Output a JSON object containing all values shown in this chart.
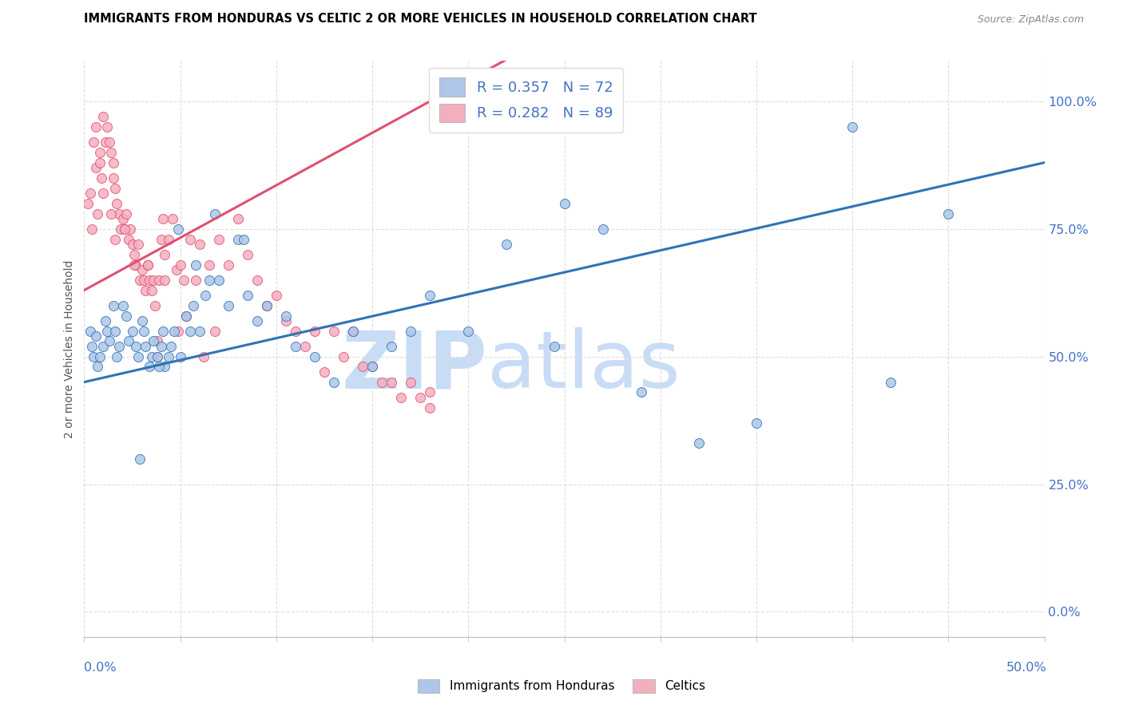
{
  "title": "IMMIGRANTS FROM HONDURAS VS CELTIC 2 OR MORE VEHICLES IN HOUSEHOLD CORRELATION CHART",
  "source": "Source: ZipAtlas.com",
  "ylabel": "2 or more Vehicles in Household",
  "ytick_labels": [
    "0.0%",
    "25.0%",
    "50.0%",
    "75.0%",
    "100.0%"
  ],
  "ytick_values": [
    0,
    25,
    50,
    75,
    100
  ],
  "xlim": [
    0,
    50
  ],
  "ylim": [
    -5,
    108
  ],
  "blue_R": 0.357,
  "blue_N": 72,
  "pink_R": 0.282,
  "pink_N": 89,
  "blue_color": "#AEC6E8",
  "pink_color": "#F4AFBF",
  "blue_line_color": "#2E74B5",
  "pink_line_color": "#E05070",
  "watermark_zip_color": "#C8DCF5",
  "watermark_atlas_color": "#C8DCF5",
  "blue_line_x0": 0,
  "blue_line_y0": 45,
  "blue_line_x1": 50,
  "blue_line_y1": 88,
  "pink_line_x0": 0,
  "pink_line_y0": 63,
  "pink_line_x1": 18,
  "pink_line_y1": 100,
  "blue_x": [
    0.3,
    0.4,
    0.5,
    0.6,
    0.7,
    0.8,
    1.0,
    1.1,
    1.2,
    1.3,
    1.5,
    1.6,
    1.7,
    1.8,
    2.0,
    2.2,
    2.3,
    2.5,
    2.7,
    2.8,
    3.0,
    3.1,
    3.2,
    3.4,
    3.5,
    3.6,
    3.8,
    4.0,
    4.1,
    4.2,
    4.4,
    4.5,
    4.7,
    5.0,
    5.3,
    5.5,
    5.7,
    6.0,
    6.3,
    6.5,
    7.0,
    7.5,
    8.0,
    8.5,
    9.0,
    9.5,
    10.5,
    11.0,
    12.0,
    13.0,
    14.0,
    15.0,
    16.0,
    17.0,
    18.0,
    20.0,
    22.0,
    24.5,
    25.0,
    27.0,
    29.0,
    32.0,
    35.0,
    40.0,
    42.0,
    45.0,
    5.8,
    4.9,
    3.9,
    2.9,
    8.3,
    6.8
  ],
  "blue_y": [
    55,
    52,
    50,
    54,
    48,
    50,
    52,
    57,
    55,
    53,
    60,
    55,
    50,
    52,
    60,
    58,
    53,
    55,
    52,
    50,
    57,
    55,
    52,
    48,
    50,
    53,
    50,
    52,
    55,
    48,
    50,
    52,
    55,
    50,
    58,
    55,
    60,
    55,
    62,
    65,
    65,
    60,
    73,
    62,
    57,
    60,
    58,
    52,
    50,
    45,
    55,
    48,
    52,
    55,
    62,
    55,
    72,
    52,
    80,
    75,
    43,
    33,
    37,
    95,
    45,
    78,
    68,
    75,
    48,
    30,
    73,
    78
  ],
  "pink_x": [
    0.2,
    0.3,
    0.4,
    0.5,
    0.6,
    0.7,
    0.8,
    0.9,
    1.0,
    1.1,
    1.2,
    1.3,
    1.4,
    1.5,
    1.6,
    1.7,
    1.8,
    1.9,
    2.0,
    2.1,
    2.2,
    2.3,
    2.4,
    2.5,
    2.6,
    2.7,
    2.8,
    2.9,
    3.0,
    3.1,
    3.2,
    3.3,
    3.4,
    3.5,
    3.6,
    3.7,
    3.8,
    3.9,
    4.0,
    4.2,
    4.4,
    4.6,
    4.8,
    5.0,
    5.2,
    5.5,
    6.0,
    6.5,
    7.0,
    7.5,
    8.0,
    8.5,
    9.0,
    9.5,
    10.0,
    10.5,
    11.0,
    11.5,
    12.0,
    12.5,
    13.0,
    13.5,
    14.0,
    15.0,
    16.0,
    17.0,
    18.0,
    3.8,
    4.2,
    5.8,
    4.1,
    2.1,
    6.2,
    5.3,
    1.5,
    2.6,
    3.3,
    14.5,
    15.5,
    16.5,
    17.5,
    18.0,
    4.9,
    6.8,
    0.6,
    0.8,
    1.0,
    1.4,
    1.6
  ],
  "pink_y": [
    80,
    82,
    75,
    92,
    87,
    78,
    90,
    85,
    97,
    92,
    95,
    92,
    90,
    88,
    83,
    80,
    78,
    75,
    77,
    75,
    78,
    73,
    75,
    72,
    70,
    68,
    72,
    65,
    67,
    65,
    63,
    68,
    65,
    63,
    65,
    60,
    50,
    65,
    73,
    65,
    73,
    77,
    67,
    68,
    65,
    73,
    72,
    68,
    73,
    68,
    77,
    70,
    65,
    60,
    62,
    57,
    55,
    52,
    55,
    47,
    55,
    50,
    55,
    48,
    45,
    45,
    43,
    53,
    70,
    65,
    77,
    75,
    50,
    58,
    85,
    68,
    68,
    48,
    45,
    42,
    42,
    40,
    55,
    55,
    95,
    88,
    82,
    78,
    73
  ]
}
